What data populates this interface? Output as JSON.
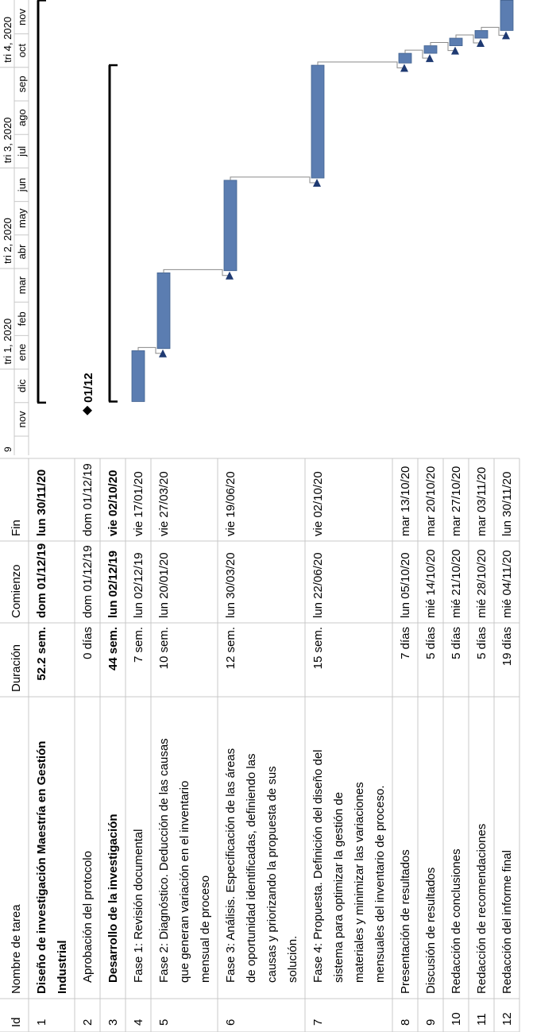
{
  "table": {
    "headers": {
      "id": "Id",
      "name": "Nombre de tarea",
      "duration": "Duración",
      "start": "Comienzo",
      "end": "Fin"
    },
    "rows": [
      {
        "id": "1",
        "name_lines": [
          "Diseño de investigación Maestría en Gestión",
          "Industrial"
        ],
        "duration": "52.2 sem.",
        "start": "dom 01/12/19",
        "end": "lun 30/11/20",
        "bold": true,
        "indent": false
      },
      {
        "id": "2",
        "name_lines": [
          "Aprobación del protocolo"
        ],
        "duration": "0 días",
        "start": "dom 01/12/19",
        "end": "dom 01/12/19",
        "bold": false,
        "indent": true
      },
      {
        "id": "3",
        "name_lines": [
          "Desarrollo de la investigación"
        ],
        "duration": "44 sem.",
        "start": "lun 02/12/19",
        "end": "vie 02/10/20",
        "bold": true,
        "indent": true
      },
      {
        "id": "4",
        "name_lines": [
          "Fase 1: Revisión documental"
        ],
        "duration": "7 sem.",
        "start": "lun 02/12/19",
        "end": "vie 17/01/20",
        "bold": false,
        "indent": true
      },
      {
        "id": "5",
        "name_lines": [
          "Fase 2: Diagnóstico. Deducción de las causas",
          "que generan variación en el inventario",
          "mensual de proceso"
        ],
        "duration": "10 sem.",
        "start": "lun 20/01/20",
        "end": "vie 27/03/20",
        "bold": false,
        "indent": true
      },
      {
        "id": "6",
        "name_lines": [
          "Fase 3: Análisis. Especificación de las áreas",
          "de oportunidad identificadas, definiendo las",
          "causas y priorizando la propuesta de sus",
          "solución."
        ],
        "duration": "12 sem.",
        "start": "lun 30/03/20",
        "end": "vie 19/06/20",
        "bold": false,
        "indent": true
      },
      {
        "id": "7",
        "name_lines": [
          "Fase 4: Propuesta. Definición del diseño del",
          "sistema para optimizar la gestión de",
          "materiales y minimizar las variaciones",
          "mensuales del inventario de proceso."
        ],
        "duration": "15 sem.",
        "start": "lun 22/06/20",
        "end": "vie 02/10/20",
        "bold": false,
        "indent": true
      },
      {
        "id": "8",
        "name_lines": [
          "Presentación de resultados"
        ],
        "duration": "7 días",
        "start": "lun 05/10/20",
        "end": "mar 13/10/20",
        "bold": false,
        "indent": false
      },
      {
        "id": "9",
        "name_lines": [
          "Discusión de resultados"
        ],
        "duration": "5 días",
        "start": "mié 14/10/20",
        "end": "mar 20/10/20",
        "bold": false,
        "indent": false
      },
      {
        "id": "10",
        "name_lines": [
          "Redacción de conclusiones"
        ],
        "duration": "5 días",
        "start": "mié 21/10/20",
        "end": "mar 27/10/20",
        "bold": false,
        "indent": false
      },
      {
        "id": "11",
        "name_lines": [
          "Redacción de recomendaciones"
        ],
        "duration": "5 días",
        "start": "mié 28/10/20",
        "end": "mar 03/11/20",
        "bold": false,
        "indent": false
      },
      {
        "id": "12",
        "name_lines": [
          "Redacción del informe final"
        ],
        "duration": "19 días",
        "start": "mié 04/11/20",
        "end": "lun 30/11/20",
        "bold": false,
        "indent": false
      }
    ]
  },
  "timescale": {
    "quarters": [
      "tri 1, 2020",
      "tri 2, 2020",
      "tri 3, 2020",
      "tri 4, 2020"
    ],
    "months": [
      "nov",
      "dic",
      "ene",
      "feb",
      "mar",
      "abr",
      "may",
      "jun",
      "jul",
      "ago",
      "sep",
      "oct",
      "nov"
    ],
    "header_fragment": "9"
  },
  "chart_data": {
    "type": "gantt",
    "tasks": [
      {
        "id": "1",
        "kind": "summary",
        "start": "2019-12-01",
        "end": "2020-11-30"
      },
      {
        "id": "2",
        "kind": "milestone",
        "date": "2019-12-01",
        "label": "01/12"
      },
      {
        "id": "3",
        "kind": "summary",
        "start": "2019-12-02",
        "end": "2020-10-02"
      },
      {
        "id": "4",
        "kind": "task",
        "start": "2019-12-02",
        "end": "2020-01-17"
      },
      {
        "id": "5",
        "kind": "task",
        "start": "2020-01-20",
        "end": "2020-03-27"
      },
      {
        "id": "6",
        "kind": "task",
        "start": "2020-03-30",
        "end": "2020-06-19"
      },
      {
        "id": "7",
        "kind": "task",
        "start": "2020-06-22",
        "end": "2020-10-02"
      },
      {
        "id": "8",
        "kind": "task",
        "start": "2020-10-05",
        "end": "2020-10-13"
      },
      {
        "id": "9",
        "kind": "task",
        "start": "2020-10-14",
        "end": "2020-10-20"
      },
      {
        "id": "10",
        "kind": "task",
        "start": "2020-10-21",
        "end": "2020-10-27"
      },
      {
        "id": "11",
        "kind": "task",
        "start": "2020-10-28",
        "end": "2020-11-03"
      },
      {
        "id": "12",
        "kind": "task",
        "start": "2020-11-04",
        "end": "2020-11-30"
      }
    ],
    "links": [
      [
        "4",
        "5"
      ],
      [
        "5",
        "6"
      ],
      [
        "6",
        "7"
      ],
      [
        "7",
        "8"
      ],
      [
        "8",
        "9"
      ],
      [
        "9",
        "10"
      ],
      [
        "10",
        "11"
      ],
      [
        "11",
        "12"
      ]
    ],
    "colors": {
      "bar": "#5b7db1",
      "bar_edge": "#41618f",
      "summary": "#000000",
      "link": "#8a8a8a",
      "arrow": "#1f3a72"
    }
  }
}
